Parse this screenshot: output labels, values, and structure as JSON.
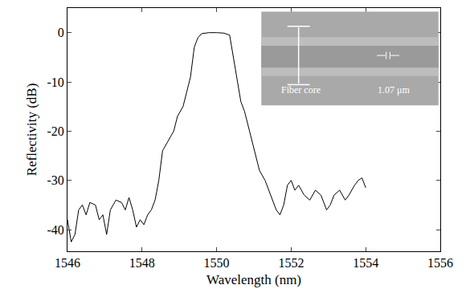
{
  "chart_data": {
    "type": "line",
    "x_label": "Wavelength (nm)",
    "y_label": "Reflectivity (dB)",
    "x": [
      1546.0,
      1546.1,
      1546.2,
      1546.3,
      1546.4,
      1546.5,
      1546.6,
      1546.75,
      1546.85,
      1546.95,
      1547.05,
      1547.15,
      1547.3,
      1547.45,
      1547.55,
      1547.65,
      1547.75,
      1547.85,
      1547.95,
      1548.05,
      1548.15,
      1548.25,
      1548.35,
      1548.45,
      1548.55,
      1548.7,
      1548.85,
      1548.95,
      1549.1,
      1549.2,
      1549.3,
      1549.4,
      1549.5,
      1549.6,
      1549.8,
      1550.0,
      1550.2,
      1550.35,
      1550.45,
      1550.55,
      1550.65,
      1550.75,
      1550.85,
      1550.95,
      1551.05,
      1551.15,
      1551.3,
      1551.45,
      1551.6,
      1551.7,
      1551.8,
      1551.9,
      1552.0,
      1552.1,
      1552.2,
      1552.35,
      1552.5,
      1552.65,
      1552.8,
      1552.95,
      1553.05,
      1553.15,
      1553.3,
      1553.45,
      1553.55,
      1553.7,
      1553.8,
      1553.9,
      1554.0
    ],
    "values": [
      -38,
      -42.5,
      -41,
      -36,
      -35,
      -37,
      -34.5,
      -35,
      -38,
      -37,
      -41,
      -36,
      -34,
      -34.5,
      -36,
      -33.5,
      -36,
      -39.5,
      -38,
      -39,
      -37,
      -36,
      -34,
      -30,
      -24,
      -22,
      -20,
      -17,
      -15,
      -12,
      -9,
      -3,
      -1,
      -0.2,
      0,
      0,
      -0.1,
      -0.5,
      -5,
      -10,
      -14,
      -16,
      -19,
      -22,
      -25,
      -28,
      -30,
      -33,
      -36,
      -37,
      -35,
      -31,
      -30,
      -32,
      -31,
      -33,
      -34,
      -32,
      -33,
      -36,
      -35,
      -33,
      -32,
      -34,
      -33,
      -31,
      -30,
      -29.5,
      -31.5
    ],
    "color": "#000000",
    "xlim": [
      1546,
      1556
    ],
    "xticks": [
      1546,
      1548,
      1550,
      1552,
      1554,
      1556
    ],
    "ylim": [
      -44.4,
      5
    ],
    "yticks": [
      -40,
      -30,
      -20,
      -10,
      0
    ],
    "grid": false,
    "annotations": [
      "Fiber core",
      "1.07 μm"
    ]
  }
}
